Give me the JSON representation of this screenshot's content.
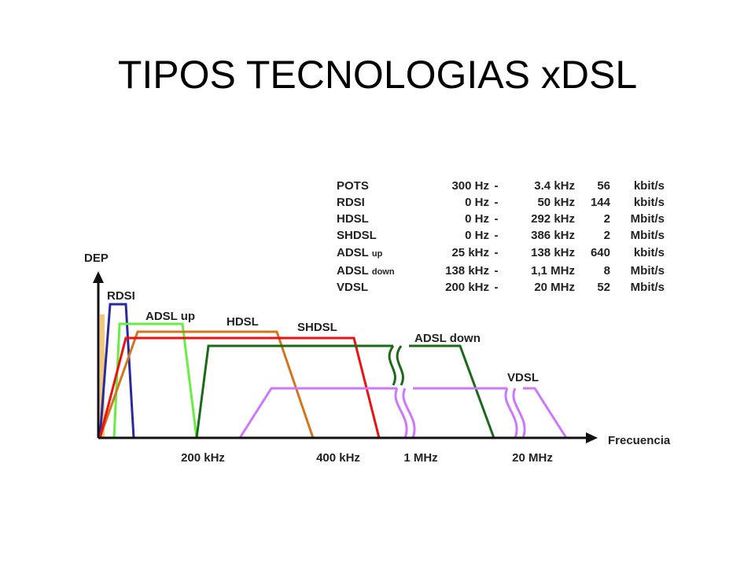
{
  "title": "TIPOS TECNOLOGIAS xDSL",
  "table": {
    "rows": [
      {
        "name": "POTS",
        "from": "300 Hz",
        "dash": "-",
        "to": "3.4 kHz",
        "rate": "56",
        "unit": "kbit/s"
      },
      {
        "name": "RDSI",
        "from": "0 Hz",
        "dash": "-",
        "to": "50 kHz",
        "rate": "144",
        "unit": "kbit/s"
      },
      {
        "name": "HDSL",
        "from": "0 Hz",
        "dash": "-",
        "to": "292 kHz",
        "rate": "2",
        "unit": "Mbit/s"
      },
      {
        "name": "SHDSL",
        "from": "0 Hz",
        "dash": "-",
        "to": "386 kHz",
        "rate": "2",
        "unit": "Mbit/s"
      },
      {
        "name": "ADSL",
        "sub": "up",
        "from": "25 kHz",
        "dash": "-",
        "to": "138 kHz",
        "rate": "640",
        "unit": "kbit/s"
      },
      {
        "name": "ADSL",
        "sub": "down",
        "from": "138 kHz",
        "dash": "-",
        "to": "1,1 MHz",
        "rate": "8",
        "unit": "Mbit/s"
      },
      {
        "name": "VDSL",
        "from": "200 kHz",
        "dash": "-",
        "to": "20 MHz",
        "rate": "52",
        "unit": "Mbit/s"
      }
    ]
  },
  "diagram": {
    "y_label": "DEP",
    "x_label": "Frecuencia",
    "x_ticks": [
      "200 kHz",
      "400 kHz",
      "1 MHz",
      "20 MHz"
    ],
    "curves": [
      "RDSI",
      "ADSL up",
      "HDSL",
      "SHDSL",
      "ADSL down",
      "VDSL"
    ]
  }
}
